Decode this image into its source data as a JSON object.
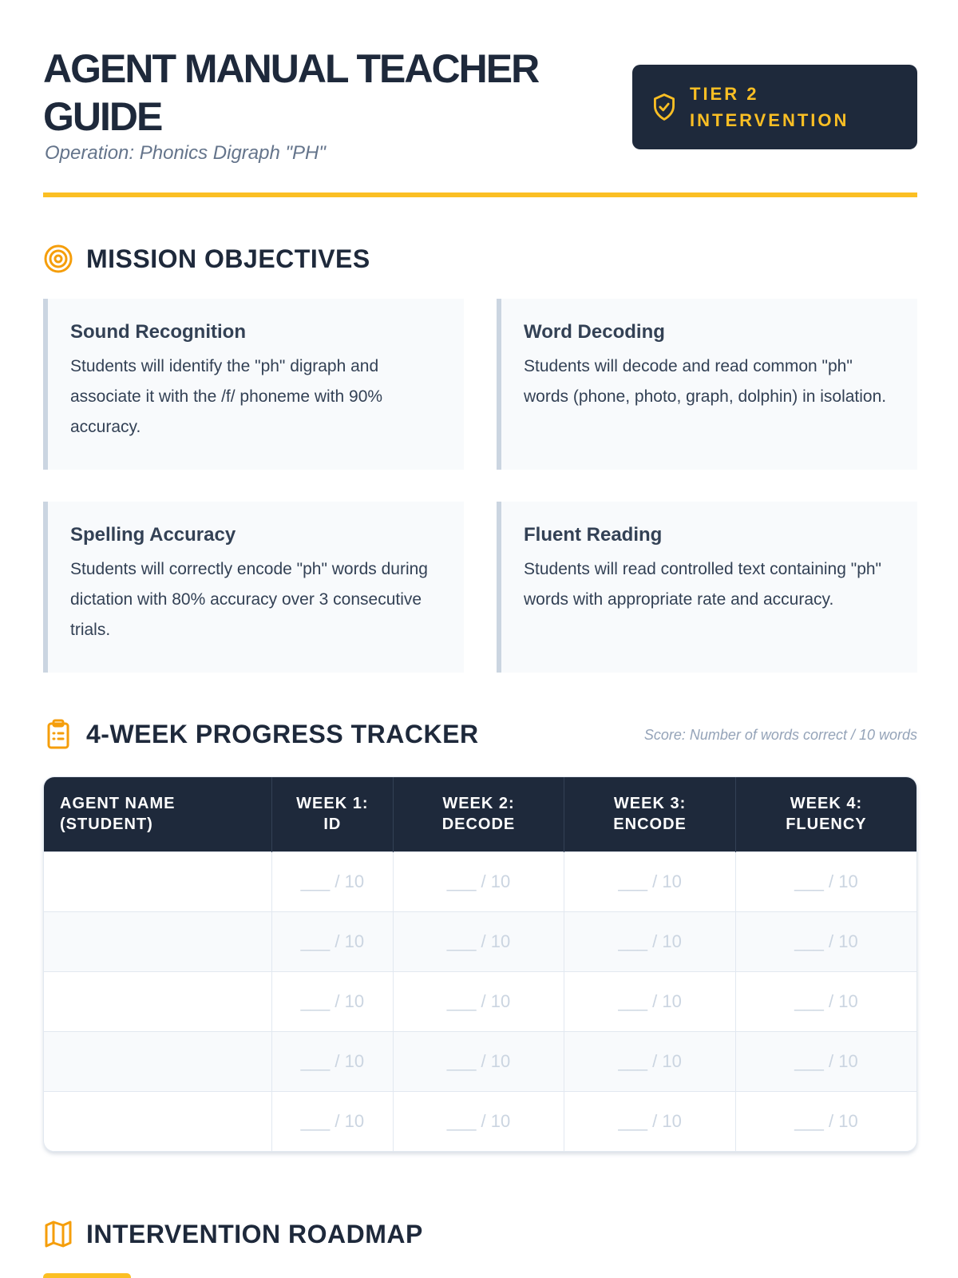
{
  "header": {
    "title": "AGENT MANUAL TEACHER GUIDE",
    "subtitle": "Operation: Phonics Digraph \"PH\"",
    "badge": {
      "icon": "shield-check-icon",
      "line1": "TIER 2",
      "line2": "INTERVENTION"
    }
  },
  "colors": {
    "accent": "#fbbf24",
    "navy": "#1e293b",
    "icon": "#f59e0b"
  },
  "objectives": {
    "heading": "MISSION OBJECTIVES",
    "icon": "target-icon",
    "cards": [
      {
        "title": "Sound Recognition",
        "text": "Students will identify the \"ph\" digraph and associate it with the /f/ phoneme with 90% accuracy."
      },
      {
        "title": "Word Decoding",
        "text": "Students will decode and read common \"ph\" words (phone, photo, graph, dolphin) in isolation."
      },
      {
        "title": "Spelling Accuracy",
        "text": "Students will correctly encode \"ph\" words during dictation with 80% accuracy over 3 consecutive trials."
      },
      {
        "title": "Fluent Reading",
        "text": "Students will read controlled text containing \"ph\" words with appropriate rate and accuracy."
      }
    ]
  },
  "tracker": {
    "heading": "4-WEEK PROGRESS TRACKER",
    "icon": "clipboard-list-icon",
    "note": "Score: Number of words correct / 10 words",
    "columns": [
      [
        "AGENT NAME",
        "(STUDENT)"
      ],
      [
        "WEEK 1:",
        "ID"
      ],
      [
        "WEEK 2:",
        "DECODE"
      ],
      [
        "WEEK 3:",
        "ENCODE"
      ],
      [
        "WEEK 4:",
        "FLUENCY"
      ]
    ],
    "cell_placeholder": "___ / 10",
    "row_count": 5
  },
  "roadmap": {
    "heading": "INTERVENTION ROADMAP",
    "icon": "map-icon"
  }
}
